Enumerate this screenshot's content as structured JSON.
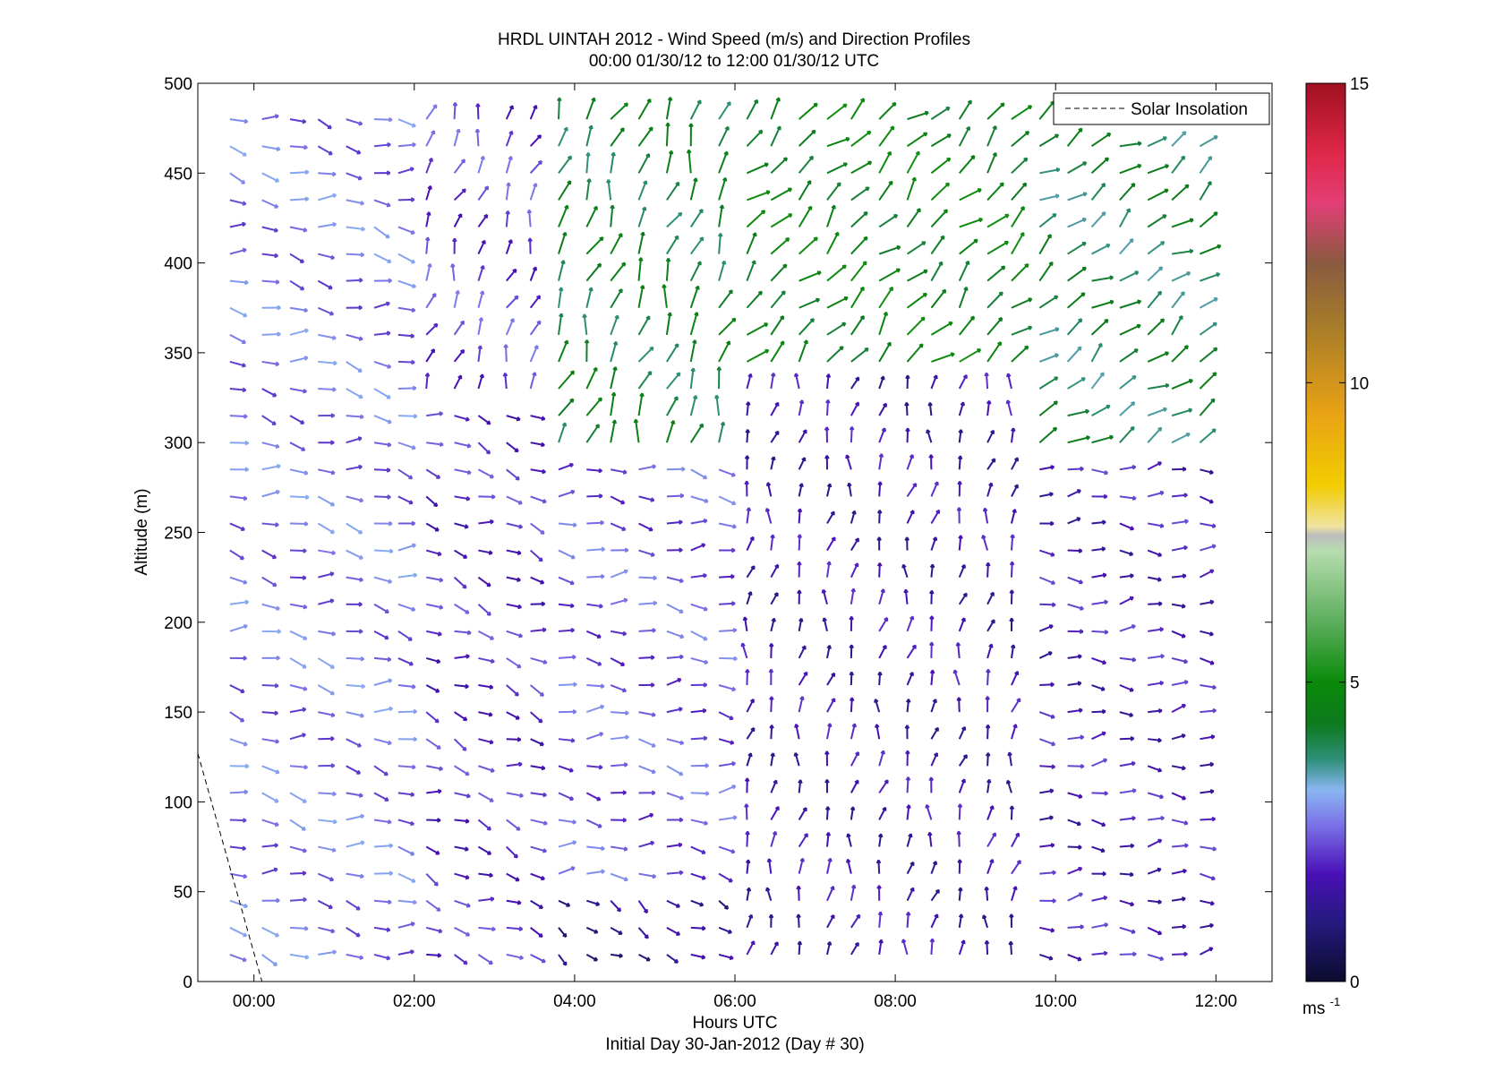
{
  "chart_data": {
    "type": "quiver",
    "title": "HRDL UINTAH 2012 - Wind Speed (m/s) and Direction Profiles",
    "subtitle": "00:00 01/30/12 to 12:00 01/30/12  UTC",
    "xlabel": "Hours UTC",
    "xlabel2": "Initial Day 30-Jan-2012 (Day # 30)",
    "ylabel": "Altitude (m)",
    "xlim_hours": [
      -0.7,
      12.7
    ],
    "ylim": [
      0,
      500
    ],
    "x_ticks": [
      {
        "hour": 0,
        "label": "00:00"
      },
      {
        "hour": 2,
        "label": "02:00"
      },
      {
        "hour": 4,
        "label": "04:00"
      },
      {
        "hour": 6,
        "label": "06:00"
      },
      {
        "hour": 8,
        "label": "08:00"
      },
      {
        "hour": 10,
        "label": "10:00"
      },
      {
        "hour": 12,
        "label": "12:00"
      }
    ],
    "y_ticks": [
      {
        "value": 0,
        "label": "0"
      },
      {
        "value": 50,
        "label": "50"
      },
      {
        "value": 100,
        "label": "100"
      },
      {
        "value": 150,
        "label": "150"
      },
      {
        "value": 200,
        "label": "200"
      },
      {
        "value": 250,
        "label": "250"
      },
      {
        "value": 300,
        "label": "300"
      },
      {
        "value": 350,
        "label": "350"
      },
      {
        "value": 400,
        "label": "400"
      },
      {
        "value": 450,
        "label": "450"
      },
      {
        "value": 500,
        "label": "500"
      }
    ],
    "legend": {
      "label": "Solar Insolation",
      "style": "dashed",
      "color": "#000000",
      "placement": "top-right"
    },
    "solar_insolation_line": [
      {
        "hour": -0.7,
        "alt": 127
      },
      {
        "hour": 0.1,
        "alt": 0
      }
    ],
    "colorbar": {
      "min": 0,
      "max": 15,
      "ticks": [
        {
          "value": 0,
          "label": "0"
        },
        {
          "value": 5,
          "label": "5"
        },
        {
          "value": 10,
          "label": "10"
        },
        {
          "value": 15,
          "label": "15"
        }
      ],
      "unit_base": "ms",
      "unit_exp": "-1",
      "stops": [
        {
          "v": 0.0,
          "color": "#0b0b2e"
        },
        {
          "v": 1.0,
          "color": "#261a80"
        },
        {
          "v": 1.8,
          "color": "#4a10b8"
        },
        {
          "v": 2.6,
          "color": "#7a70e6"
        },
        {
          "v": 3.2,
          "color": "#8ab6f2"
        },
        {
          "v": 3.7,
          "color": "#2f8f7a"
        },
        {
          "v": 4.3,
          "color": "#0d7a1e"
        },
        {
          "v": 5.0,
          "color": "#0a8a0a"
        },
        {
          "v": 6.0,
          "color": "#5cae5c"
        },
        {
          "v": 7.2,
          "color": "#b7dcb0"
        },
        {
          "v": 7.45,
          "color": "#bcbcbc"
        },
        {
          "v": 7.6,
          "color": "#f0e3a0"
        },
        {
          "v": 8.3,
          "color": "#f2cc00"
        },
        {
          "v": 9.5,
          "color": "#e8a215"
        },
        {
          "v": 11.0,
          "color": "#a57a2a"
        },
        {
          "v": 12.0,
          "color": "#8a5a40"
        },
        {
          "v": 13.0,
          "color": "#e23e76"
        },
        {
          "v": 13.8,
          "color": "#e0284a"
        },
        {
          "v": 15.0,
          "color": "#a01020"
        }
      ]
    },
    "wind_field": {
      "note_unit": "m/s",
      "hours": [
        -0.3,
        0.1,
        0.45,
        0.8,
        1.15,
        1.5,
        1.8,
        2.15,
        2.5,
        2.8,
        3.15,
        3.45,
        3.8,
        4.15,
        4.45,
        4.8,
        5.15,
        5.45,
        5.8,
        6.15,
        6.45,
        6.8,
        7.15,
        7.45,
        7.8,
        8.15,
        8.45,
        8.8,
        9.15,
        9.45,
        9.8,
        10.15,
        10.45,
        10.8,
        11.15,
        11.45,
        11.8
      ],
      "altitudes": [
        15,
        30,
        45,
        60,
        75,
        90,
        105,
        120,
        135,
        150,
        165,
        180,
        195,
        210,
        225,
        240,
        255,
        270,
        285,
        300,
        315,
        330,
        345,
        360,
        375,
        390,
        405,
        420,
        435,
        450,
        465,
        480
      ],
      "regimes": [
        {
          "t0": -0.7,
          "t1": 1.9,
          "a0": 0,
          "a1": 500,
          "speed": 2.6,
          "dir_deg": 280
        },
        {
          "t0": 1.9,
          "t1": 3.5,
          "a0": 0,
          "a1": 330,
          "speed": 2.0,
          "dir_deg": 290
        },
        {
          "t0": 1.9,
          "t1": 3.5,
          "a0": 330,
          "a1": 500,
          "speed": 2.2,
          "dir_deg": 200
        },
        {
          "t0": 3.5,
          "t1": 6.0,
          "a0": 0,
          "a1": 60,
          "speed": 1.2,
          "dir_deg": 300
        },
        {
          "t0": 3.5,
          "t1": 6.0,
          "a0": 60,
          "a1": 300,
          "speed": 2.4,
          "dir_deg": 275
        },
        {
          "t0": 3.5,
          "t1": 6.0,
          "a0": 300,
          "a1": 500,
          "speed": 4.2,
          "dir_deg": 200
        },
        {
          "t0": 6.0,
          "t1": 9.7,
          "a0": 0,
          "a1": 340,
          "speed": 1.6,
          "dir_deg": 190
        },
        {
          "t0": 6.0,
          "t1": 9.7,
          "a0": 340,
          "a1": 500,
          "speed": 4.6,
          "dir_deg": 225
        },
        {
          "t0": 9.7,
          "t1": 12.7,
          "a0": 0,
          "a1": 300,
          "speed": 1.8,
          "dir_deg": 270
        },
        {
          "t0": 9.7,
          "t1": 12.7,
          "a0": 300,
          "a1": 500,
          "speed": 4.0,
          "dir_deg": 235
        }
      ]
    }
  }
}
